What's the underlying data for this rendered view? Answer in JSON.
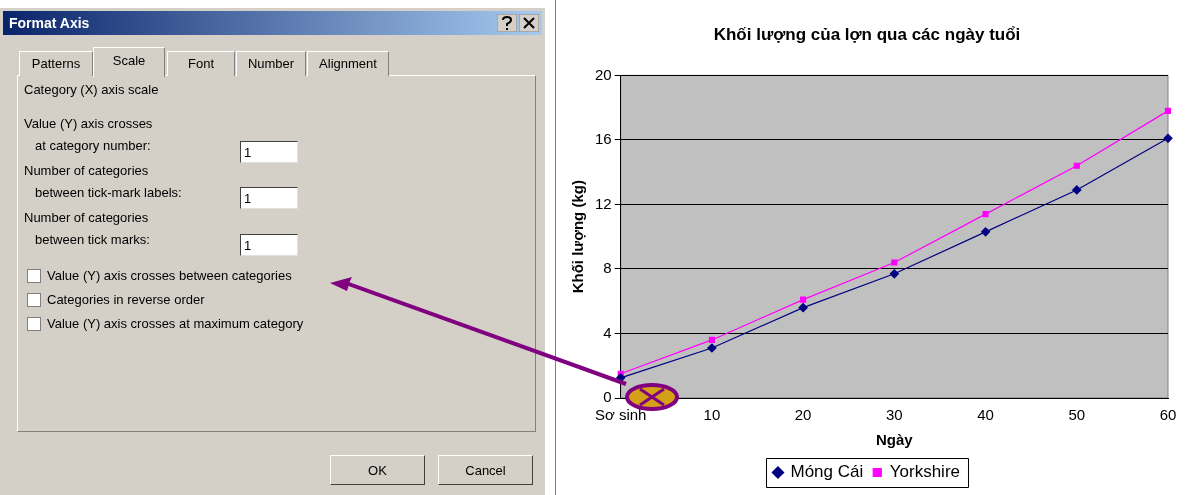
{
  "chart_data": [
    {
      "type": "other",
      "title": "Format Axis",
      "annotations": [
        "Patterns",
        "Scale",
        "Font",
        "Number",
        "Alignment",
        "Category (X) axis scale",
        "Value (Y) axis crosses",
        "at category number:",
        "1",
        "Number of categories",
        "between tick-mark labels:",
        "1",
        "Number of categories",
        "between tick marks:",
        "1",
        "Value (Y) axis crosses between categories",
        "Categories in reverse order",
        "Value (Y) axis crosses at maximum category",
        "OK",
        "Cancel"
      ]
    },
    {
      "type": "line",
      "title": "Khối lượng của lợn qua các ngày tuổi",
      "xlabel": "Ngày",
      "ylabel": "Khối lượng (kg)",
      "categories": [
        "Sơ sinh",
        "10",
        "20",
        "30",
        "40",
        "50",
        "60"
      ],
      "series": [
        {
          "name": "Móng Cái",
          "color": "#000080",
          "marker": "diamond",
          "values": [
            1.25,
            3.1,
            5.6,
            7.7,
            10.3,
            12.9,
            16.1
          ]
        },
        {
          "name": "Yorkshire",
          "color": "#ff00ff",
          "marker": "square",
          "values": [
            1.5,
            3.6,
            6.1,
            8.4,
            11.4,
            14.4,
            17.8
          ]
        }
      ],
      "ylim": [
        0,
        20
      ],
      "yticks": [
        0,
        4,
        8,
        12,
        16,
        20
      ],
      "grid": "y",
      "legend": "bottom"
    }
  ]
}
